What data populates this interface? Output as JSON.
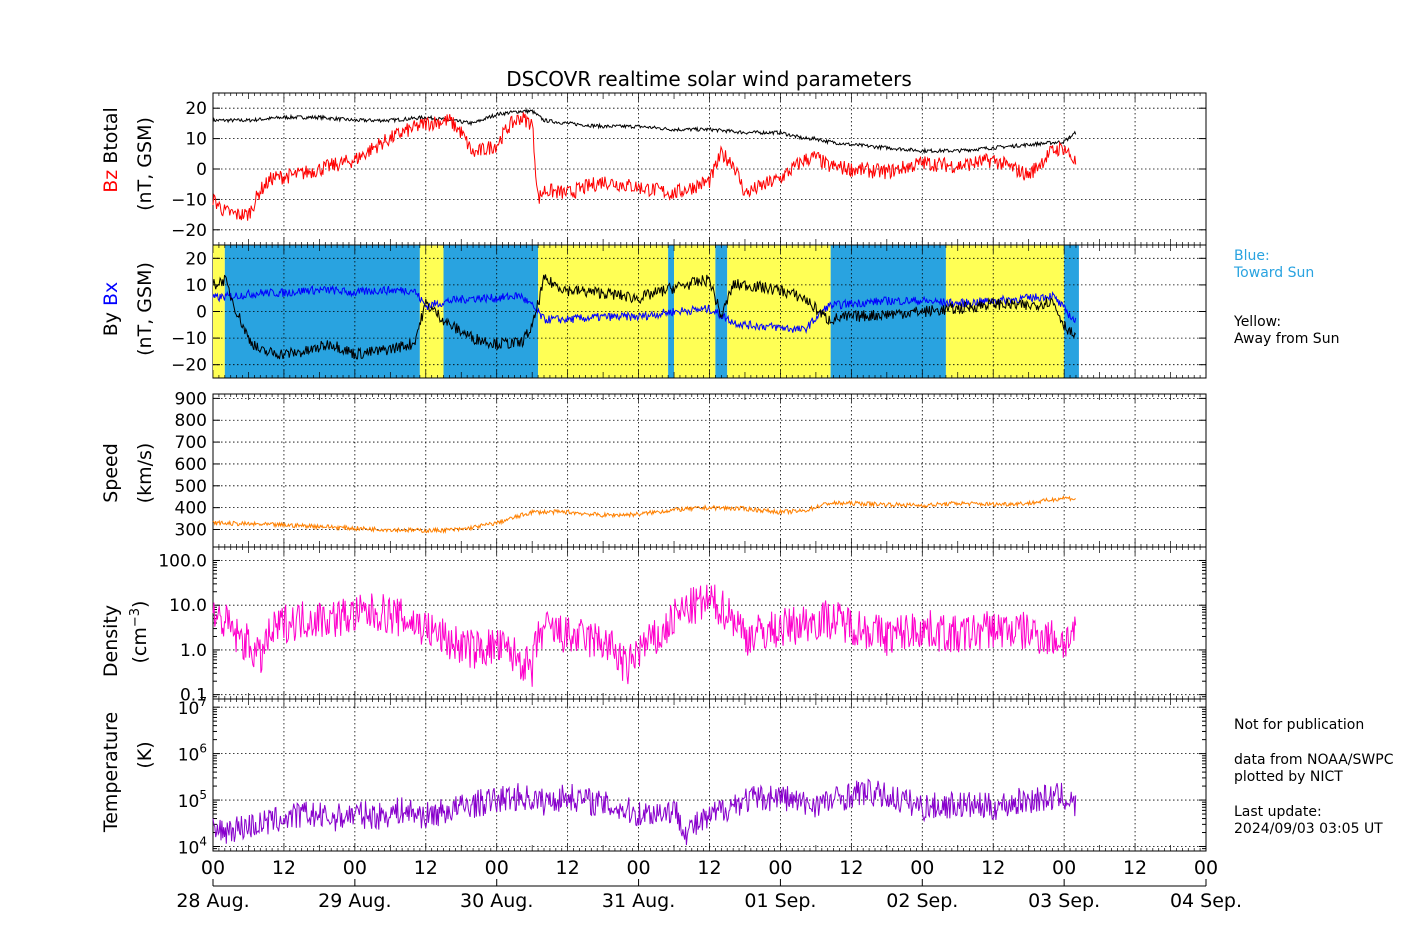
{
  "title": "DSCOVR realtime solar wind parameters",
  "panels": {
    "btotal": {
      "ylabel_a": "Btotal",
      "ylabel_b": "Bz",
      "ylabel_units": "(nT, GSM)",
      "ticks": [
        "20",
        "10",
        "0",
        "−10",
        "−20"
      ]
    },
    "bxby": {
      "ylabel_a": "By",
      "ylabel_b": "Bx",
      "ylabel_units": "(nT, GSM)",
      "ticks": [
        "20",
        "10",
        "0",
        "−10",
        "−20"
      ]
    },
    "speed": {
      "ylabel": "Speed",
      "ylabel_units": "(km/s)",
      "ticks": [
        "900",
        "800",
        "700",
        "600",
        "500",
        "400",
        "300"
      ]
    },
    "density": {
      "ylabel": "Density",
      "ylabel_units": "(cm",
      "ylabel_units_sup": "−3",
      "ylabel_units_close": ")",
      "ticks": [
        "100.0",
        "10.0",
        "1.0",
        "0.1"
      ]
    },
    "temperature": {
      "ylabel": "Temperature",
      "ylabel_units": "(K)",
      "ticks": [
        {
          "base": "10",
          "exp": "7"
        },
        {
          "base": "10",
          "exp": "6"
        },
        {
          "base": "10",
          "exp": "5"
        },
        {
          "base": "10",
          "exp": "4"
        }
      ]
    }
  },
  "time_axis": {
    "hour_labels": [
      "00",
      "12",
      "00",
      "12",
      "00",
      "12",
      "00",
      "12",
      "00",
      "12",
      "00",
      "12",
      "00",
      "12",
      "00"
    ],
    "day_labels": [
      "28 Aug.",
      "29 Aug.",
      "30 Aug.",
      "31 Aug.",
      "01 Sep.",
      "02 Sep.",
      "03 Sep.",
      "04 Sep."
    ]
  },
  "side_text": {
    "legend_blue_1": "Blue:",
    "legend_blue_2": "Toward Sun",
    "legend_yellow_1": "Yellow:",
    "legend_yellow_2": "Away from Sun",
    "note": "Not for publication",
    "source_1": "data from NOAA/SWPC",
    "source_2": "plotted by NICT",
    "update_label": "Last update:",
    "update_value": "2024/09/03 03:05 UT"
  },
  "colors": {
    "btotal": "#000000",
    "bz": "#ff0000",
    "bx": "#0000ff",
    "by": "#000000",
    "speed": "#ff8000",
    "density": "#ff00cc",
    "temperature": "#8800cc",
    "toward_sun": "#29a3e0",
    "away_from_sun": "#ffff55"
  },
  "chart_data": [
    {
      "type": "line",
      "panel": "btotal",
      "ylim": [
        -25,
        25
      ],
      "x_unit": "hours since 28 Aug. 00 UT",
      "xlim": [
        0,
        168
      ],
      "grid": true,
      "series": [
        {
          "name": "Btotal",
          "x": [
            0,
            6,
            12,
            18,
            24,
            30,
            36,
            40,
            44,
            48,
            52,
            54,
            56,
            60,
            66,
            72,
            78,
            84,
            90,
            96,
            100,
            102,
            104,
            108,
            114,
            120,
            126,
            132,
            138,
            144,
            146
          ],
          "values": [
            16,
            16,
            17,
            17,
            16,
            16,
            17,
            16,
            15,
            18,
            19,
            19,
            16,
            15,
            14,
            14,
            13,
            13,
            12,
            12,
            10,
            10,
            9,
            8,
            7,
            6,
            6,
            7,
            8,
            9,
            12
          ]
        },
        {
          "name": "Bz",
          "x": [
            0,
            2,
            4,
            6,
            8,
            10,
            14,
            18,
            22,
            24,
            28,
            32,
            36,
            40,
            42,
            44,
            48,
            50,
            52,
            54,
            55,
            56,
            60,
            66,
            72,
            78,
            84,
            86,
            88,
            90,
            96,
            100,
            102,
            104,
            108,
            114,
            120,
            126,
            132,
            138,
            142,
            144,
            146
          ],
          "values": [
            -10,
            -14,
            -15,
            -15,
            -7,
            -3,
            -2,
            0,
            2,
            3,
            8,
            12,
            15,
            16,
            12,
            5,
            8,
            14,
            17,
            15,
            -10,
            -7,
            -8,
            -4,
            -6,
            -8,
            -4,
            5,
            2,
            -8,
            -3,
            3,
            4,
            1,
            0,
            -1,
            2,
            1,
            3,
            -2,
            6,
            7,
            2
          ]
        }
      ]
    },
    {
      "type": "line",
      "panel": "bxby",
      "ylim": [
        -25,
        25
      ],
      "xlim": [
        0,
        168
      ],
      "grid": true,
      "imf_sector_bands": [
        {
          "from": 0,
          "to": 2,
          "sector": "away"
        },
        {
          "from": 2,
          "to": 35,
          "sector": "toward"
        },
        {
          "from": 35,
          "to": 39,
          "sector": "away"
        },
        {
          "from": 39,
          "to": 55,
          "sector": "toward"
        },
        {
          "from": 55,
          "to": 77,
          "sector": "away"
        },
        {
          "from": 77,
          "to": 78,
          "sector": "toward"
        },
        {
          "from": 78,
          "to": 85,
          "sector": "away"
        },
        {
          "from": 85,
          "to": 87,
          "sector": "toward"
        },
        {
          "from": 87,
          "to": 104.5,
          "sector": "away"
        },
        {
          "from": 104.5,
          "to": 124,
          "sector": "toward"
        },
        {
          "from": 124,
          "to": 144,
          "sector": "away"
        },
        {
          "from": 144,
          "to": 146.5,
          "sector": "toward"
        }
      ],
      "series": [
        {
          "name": "Bx",
          "x": [
            0,
            4,
            8,
            12,
            16,
            20,
            24,
            28,
            34,
            36,
            40,
            44,
            48,
            52,
            54,
            56,
            60,
            66,
            72,
            78,
            84,
            88,
            90,
            96,
            100,
            104,
            108,
            114,
            120,
            126,
            132,
            138,
            142,
            146
          ],
          "values": [
            5,
            6,
            7,
            7,
            8,
            8,
            7,
            8,
            8,
            2,
            4,
            5,
            5,
            6,
            2,
            -3,
            -3,
            -2,
            -2,
            0,
            1,
            -4,
            -5,
            -6,
            -7,
            2,
            3,
            4,
            4,
            3,
            4,
            5,
            6,
            -4
          ]
        },
        {
          "name": "By",
          "x": [
            0,
            2,
            4,
            6,
            8,
            12,
            16,
            20,
            24,
            28,
            34,
            36,
            40,
            44,
            48,
            52,
            54,
            56,
            60,
            66,
            72,
            78,
            84,
            86,
            88,
            90,
            96,
            100,
            104,
            108,
            114,
            120,
            126,
            132,
            138,
            142,
            144,
            146
          ],
          "values": [
            10,
            12,
            0,
            -10,
            -15,
            -16,
            -15,
            -12,
            -16,
            -15,
            -12,
            3,
            -5,
            -10,
            -12,
            -12,
            -6,
            12,
            8,
            7,
            5,
            9,
            12,
            -2,
            10,
            10,
            8,
            5,
            -3,
            -2,
            -1,
            0,
            1,
            3,
            2,
            4,
            -5,
            -10
          ]
        }
      ]
    },
    {
      "type": "line",
      "panel": "speed",
      "ylim": [
        220,
        920
      ],
      "xlim": [
        0,
        168
      ],
      "grid": true,
      "series": [
        {
          "name": "Speed",
          "x": [
            0,
            6,
            12,
            18,
            24,
            30,
            36,
            42,
            48,
            54,
            60,
            66,
            72,
            78,
            84,
            90,
            96,
            100,
            104,
            108,
            114,
            120,
            126,
            132,
            138,
            144,
            146
          ],
          "values": [
            330,
            325,
            320,
            315,
            305,
            300,
            295,
            300,
            330,
            380,
            380,
            365,
            370,
            390,
            400,
            395,
            380,
            385,
            420,
            420,
            415,
            410,
            420,
            415,
            420,
            445,
            440
          ]
        }
      ]
    },
    {
      "type": "line",
      "panel": "density",
      "scale": "log",
      "ylim": [
        0.08,
        200
      ],
      "xlim": [
        0,
        168
      ],
      "grid": true,
      "series": [
        {
          "name": "Density",
          "x": [
            0,
            4,
            8,
            12,
            16,
            20,
            24,
            28,
            32,
            36,
            40,
            44,
            48,
            52,
            54,
            56,
            60,
            66,
            70,
            72,
            76,
            80,
            84,
            90,
            96,
            100,
            104,
            110,
            114,
            120,
            126,
            132,
            138,
            144,
            146
          ],
          "values": [
            6,
            2,
            0.6,
            4,
            5,
            5,
            6,
            7,
            5,
            3,
            1.5,
            1,
            1.2,
            0.6,
            0.3,
            3,
            2,
            1.5,
            0.3,
            1,
            2,
            8,
            12,
            2,
            3,
            4,
            5,
            3,
            2,
            3,
            2,
            3,
            2.5,
            1.5,
            2.5
          ]
        }
      ]
    },
    {
      "type": "line",
      "panel": "temperature",
      "scale": "log",
      "ylim": [
        8000,
        15000000
      ],
      "xlim": [
        0,
        168
      ],
      "grid": true,
      "series": [
        {
          "name": "Temperature",
          "x": [
            0,
            4,
            8,
            12,
            16,
            20,
            24,
            28,
            32,
            36,
            40,
            44,
            48,
            52,
            56,
            60,
            66,
            72,
            78,
            80,
            84,
            90,
            96,
            100,
            104,
            110,
            114,
            120,
            126,
            132,
            138,
            144,
            146
          ],
          "values": [
            20000,
            25000,
            30000,
            40000,
            50000,
            40000,
            50000,
            45000,
            60000,
            45000,
            60000,
            80000,
            100000,
            120000,
            90000,
            120000,
            80000,
            50000,
            60000,
            20000,
            40000,
            100000,
            120000,
            80000,
            90000,
            150000,
            120000,
            70000,
            80000,
            70000,
            100000,
            120000,
            70000
          ]
        }
      ]
    }
  ]
}
